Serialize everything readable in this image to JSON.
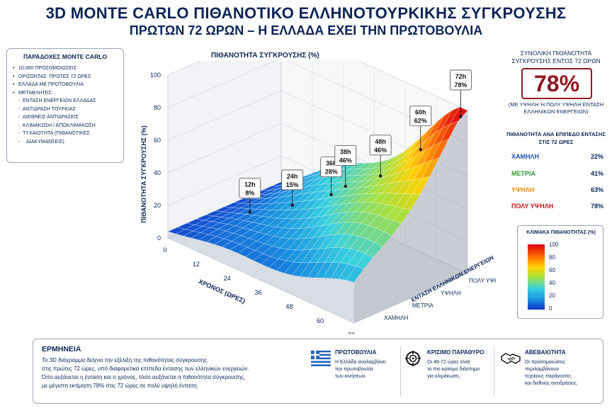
{
  "header": {
    "title": "3D MONTE CARLO ΠΙΘΑΝΟΤΙΚΟ ΕΛΛΗΝΟΤΟΥΡΚΙΚΗΣ ΣΥΓΚΡΟΥΣΗΣ",
    "subtitle": "ΠΡΩΤΩΝ 72 ΩΡΩΝ – Η ΕΛΛΑΔΑ ΕΧΕΙ ΤΗΝ ΠΡΩΤΟΒΟΥΛΙΑ"
  },
  "assumptions": {
    "title": "ΠΑΡΑΔΟΧΕΣ MONTE CARLO",
    "bullets": [
      "10.000 ΠΡΟΣΟΜΟΙΩΣΕΙΣ",
      "ΟΡΙΖΟΝΤΑΣ: ΠΡΩΤΕΣ 72 ΩΡΕΣ",
      "ΕΛΛΑΔΑ ΜΕ ΠΡΩΤΟΒΟΥΛΙΑ",
      "ΜΕΤΑΒΛΗΤΕΣ:"
    ],
    "variables": [
      "ΕΝΤΑΣΗ ΕΝΕΡΓΕΙΩΝ ΕΛΛΑΔΑΣ",
      "ΑΝΤΙΔΡΑΣΗ ΤΟΥΡΚΙΑΣ",
      "ΔΙΕΘΝΕΙΣ ΑΝΤΙΔΡΑΣΕΙΣ",
      "ΚΛΙΜΑΚΩΣΗ / ΑΠΟΚΛΙΜΑΚΩΣΗ",
      "ΤΥΧΑΙΟΤΗΤΑ (ΠΙΘΑΝΟΤΙΚΕΣ",
      "ΔΙΑΚΥΜΑΝΣΕΙΣ)"
    ]
  },
  "chart_data": {
    "type": "surface",
    "title": "ΠΙΘΑΝΟΤΗΤΑ ΣΥΓΚΡΟΥΣΗΣ (%)",
    "xlabel": "ΧΡΟΝΟΣ (ΩΡΕΣ)",
    "ylabel": "ΕΝΤΑΣΗ ΕΛΛΗΝΙΚΩΝ ΕΝΕΡΓΕΙΩΝ",
    "zlabel": "ΠΙΘΑΝΟΤΗΤΑ ΣΥΓΚΡΟΥΣΗΣ (%)",
    "x_ticks": [
      "0",
      "12",
      "24",
      "36",
      "48",
      "60",
      "72"
    ],
    "y_categories": [
      "ΧΑΜΗΛΗ",
      "ΜΕΤΡΙΑ",
      "ΥΨΗΛΗ",
      "ΠΟΛΥ ΥΨΗΛΗ"
    ],
    "z_ticks": [
      "0",
      "20",
      "40",
      "60",
      "80",
      "100"
    ],
    "zlim": [
      0,
      100
    ],
    "annotations": [
      {
        "label": "12h",
        "value": "8%",
        "x": 12,
        "z": 8
      },
      {
        "label": "24h",
        "value": "15%",
        "x": 24,
        "z": 15
      },
      {
        "label": "36h",
        "value": "28%",
        "x": 36,
        "z": 28
      },
      {
        "label": "38h",
        "value": "46%",
        "x": 38,
        "z": 46
      },
      {
        "label": "48h",
        "value": "46%",
        "x": 48,
        "z": 46
      },
      {
        "label": "60h",
        "value": "62%",
        "x": 60,
        "z": 62
      },
      {
        "label": "72h",
        "value": "78%",
        "x": 72,
        "z": 78
      }
    ]
  },
  "summary": {
    "title": "ΣΥΝΟΛΙΚΗ ΠΙΘΑΝΟΤΗΤΑ ΣΥΓΚΡΟΥΣΗΣ ΕΝΤΟΣ 72 ΩΡΩΝ",
    "value": "78%",
    "note": "(ΜΕ ΥΨΗΛΗ Ή ΠΟΛΥ ΥΨΗΛΗ ΕΝΤΑΣΗ ΕΛΛΗΝΙΚΩΝ ΕΝΕΡΓΕΙΩΝ)",
    "levels_title": "ΠΙΘΑΝΟΤΗΤΑ ΑΝΑ ΕΠΙΠΕΔΟ ΕΝΤΑΣΗΣ ΣΤΙΣ 72 ΩΡΕΣ",
    "levels": [
      {
        "name": "ΧΑΜΗΛΗ",
        "value": "22%",
        "color": "#1f4db8"
      },
      {
        "name": "ΜΕΤΡΙΑ",
        "value": "41%",
        "color": "#2e9a2e"
      },
      {
        "name": "ΥΨΗΛΗ",
        "value": "63%",
        "color": "#f08a00"
      },
      {
        "name": "ΠΟΛΥ ΥΨΗΛΗ",
        "value": "78%",
        "color": "#d0141b"
      }
    ]
  },
  "scale": {
    "title": "ΚΛΙΜΑΚΑ ΠΙΘΑΝΟΤΗΤΑΣ (%)",
    "ticks": [
      "100",
      "80",
      "60",
      "40",
      "20",
      "0"
    ]
  },
  "interpretation": {
    "title": "ΕΡΜΗΝΕΙΑ",
    "lines": [
      "Το 3D διάγραμμα δείχνει την εξέλιξη της πιθανότητας σύγκρουσης",
      "στις πρώτες 72 ώρες, υπό διαφορετικά επίπεδα έντασης των ελληνικών ενεργειών.",
      "Όσο αυξάνεται η ένταση και ο χρόνος, τόσο αυξάνεται η πιθανότητα σύγκρουσης,",
      "με μέγιστη εκτίμηση 78% στις 72 ώρες σε πολύ υψηλή ένταση."
    ]
  },
  "cards": [
    {
      "title": "ΠΡΩΤΟΒΟΥΛΙΑ",
      "lines": [
        "Η Ελλάδα αναλαμβάνει",
        "την πρωτοβουλία",
        "των κινήσεων."
      ],
      "icon": "greek-flag-icon"
    },
    {
      "title": "ΚΡΙΣΙΜΟ ΠΑΡΑΘΥΡΟ",
      "lines": [
        "Οι 48-72 ώρες είναι",
        "το πιο κρίσιμο διάστημα",
        "για κλιμάκωση."
      ],
      "icon": "crosshair-icon"
    },
    {
      "title": "ΑΒΕΒΑΙΟΤΗΤΑ",
      "lines": [
        "Οι προσομοιώσεις",
        "περιλαμβάνουν",
        "τυχαίους παράγοντες",
        "και διεθνείς αντιδράσεις."
      ],
      "icon": "handshake-icon"
    }
  ]
}
